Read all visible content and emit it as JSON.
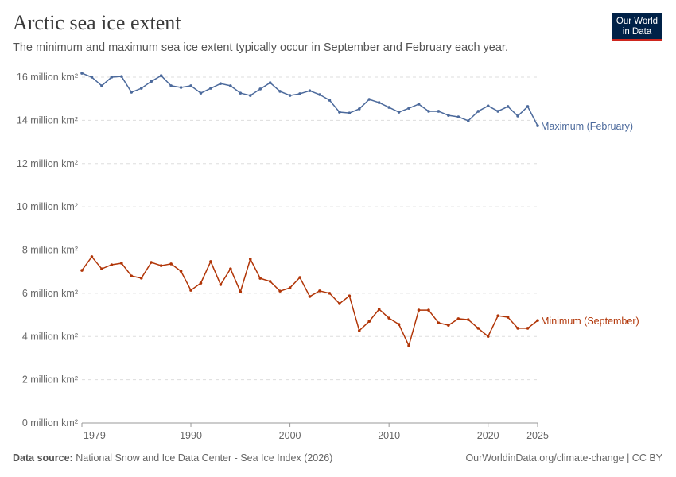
{
  "header": {
    "title": "Arctic sea ice extent",
    "subtitle": "The minimum and maximum sea ice extent typically occur in September and February each year.",
    "logo": "Our World in Data"
  },
  "footer": {
    "source_label": "Data source:",
    "source": "National Snow and Ice Data Center - Sea Ice Index (2026)",
    "license": "OurWorldinData.org/climate-change | CC BY"
  },
  "chart_data": {
    "type": "line",
    "title": "Arctic sea ice extent",
    "xlim": [
      1979,
      2025
    ],
    "ylim": [
      0,
      16
    ],
    "grid": "horizontal dashed",
    "x_ticks": [
      1979,
      1990,
      2000,
      2010,
      2020,
      2025
    ],
    "x_tick_labels": [
      "1979",
      "1990",
      "2000",
      "2010",
      "2020",
      "2025"
    ],
    "y_ticks": [
      0,
      2,
      4,
      6,
      8,
      10,
      12,
      14,
      16
    ],
    "y_tick_labels": [
      "0 million km²",
      "2 million km²",
      "4 million km²",
      "6 million km²",
      "8 million km²",
      "10 million km²",
      "12 million km²",
      "14 million km²",
      "16 million km²"
    ],
    "legend": "inline labels at right end",
    "x": [
      1979,
      1980,
      1981,
      1982,
      1983,
      1984,
      1985,
      1986,
      1987,
      1988,
      1989,
      1990,
      1991,
      1992,
      1993,
      1994,
      1995,
      1996,
      1997,
      1998,
      1999,
      2000,
      2001,
      2002,
      2003,
      2004,
      2005,
      2006,
      2007,
      2008,
      2009,
      2010,
      2011,
      2012,
      2013,
      2014,
      2015,
      2016,
      2017,
      2018,
      2019,
      2020,
      2021,
      2022,
      2023,
      2024,
      2025
    ],
    "series": [
      {
        "name": "Maximum (February)",
        "color": "#4c6a9c",
        "values": [
          16.18,
          16.0,
          15.6,
          16.0,
          16.03,
          15.3,
          15.48,
          15.8,
          16.07,
          15.6,
          15.52,
          15.6,
          15.26,
          15.48,
          15.7,
          15.6,
          15.26,
          15.15,
          15.45,
          15.74,
          15.34,
          15.15,
          15.23,
          15.37,
          15.19,
          14.93,
          14.38,
          14.34,
          14.53,
          14.97,
          14.82,
          14.6,
          14.38,
          14.56,
          14.75,
          14.42,
          14.42,
          14.23,
          14.16,
          13.98,
          14.42,
          14.67,
          14.42,
          14.64,
          14.2,
          14.64,
          13.75
        ]
      },
      {
        "name": "Minimum (September)",
        "color": "#b13507",
        "values": [
          7.06,
          7.69,
          7.13,
          7.32,
          7.39,
          6.8,
          6.7,
          7.43,
          7.28,
          7.36,
          7.02,
          6.14,
          6.47,
          7.47,
          6.4,
          7.13,
          6.07,
          7.58,
          6.69,
          6.55,
          6.1,
          6.25,
          6.73,
          5.85,
          6.11,
          6.0,
          5.52,
          5.88,
          4.27,
          4.7,
          5.26,
          4.85,
          4.56,
          3.57,
          5.22,
          5.22,
          4.63,
          4.52,
          4.82,
          4.78,
          4.38,
          4.0,
          4.96,
          4.89,
          4.38,
          4.38,
          4.74
        ]
      }
    ]
  }
}
